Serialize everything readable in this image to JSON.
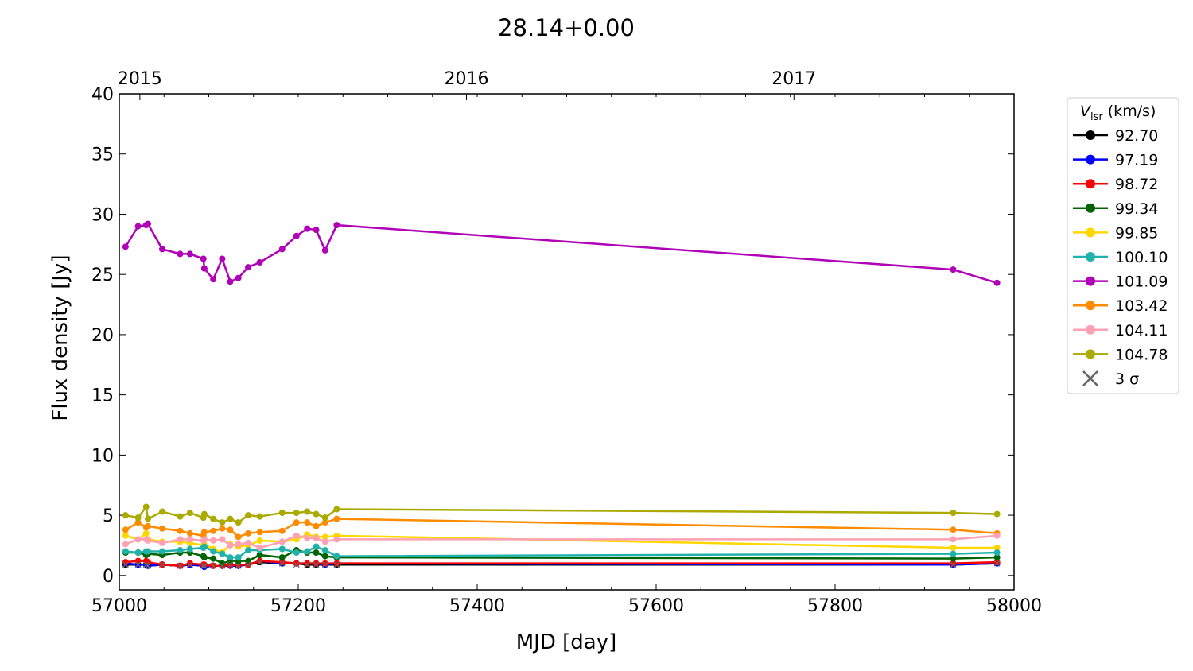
{
  "chart_data": {
    "type": "line",
    "title": "28.14+0.00",
    "xlabel": "MJD [day]",
    "ylabel": "Flux density [Jy]",
    "xlim": [
      57000,
      58000
    ],
    "ylim": [
      -1.2,
      40
    ],
    "xticks": [
      57000,
      57200,
      57400,
      57600,
      57800,
      58000
    ],
    "yticks": [
      0,
      5,
      10,
      15,
      20,
      25,
      30,
      35,
      40
    ],
    "top_axis": {
      "ticks": [
        {
          "label": "2015",
          "mjd": 57023
        },
        {
          "label": "2016",
          "mjd": 57388
        },
        {
          "label": "2017",
          "mjd": 57754
        }
      ]
    },
    "legend": {
      "title_main": "V",
      "title_sub": "lsr",
      "title_unit": " (km/s)",
      "placement": "right-outside",
      "sigma_label": "3 σ"
    },
    "x": [
      57007,
      57021,
      57030,
      57032,
      57048,
      57068,
      57079,
      57094,
      57095,
      57105,
      57115,
      57124,
      57133,
      57144,
      57157,
      57182,
      57198,
      57210,
      57220,
      57230,
      57243,
      57932,
      57981
    ],
    "series": [
      {
        "name": "92.70",
        "color": "#000000",
        "values": [
          0.9,
          0.9,
          0.9,
          0.8,
          0.9,
          0.8,
          0.9,
          0.8,
          0.8,
          0.8,
          0.8,
          0.9,
          0.8,
          0.9,
          1.1,
          1.0,
          1.0,
          0.9,
          0.9,
          0.9,
          0.9,
          0.9,
          1.0
        ]
      },
      {
        "name": "97.19",
        "color": "#0000ff",
        "values": [
          1.0,
          0.9,
          0.9,
          0.8,
          0.9,
          0.8,
          0.9,
          0.8,
          0.7,
          0.8,
          0.8,
          0.8,
          0.8,
          0.9,
          1.2,
          1.0,
          1.0,
          1.0,
          1.0,
          0.9,
          1.0,
          0.9,
          1.0
        ]
      },
      {
        "name": "98.72",
        "color": "#ff0000",
        "values": [
          1.1,
          1.2,
          1.2,
          1.1,
          0.9,
          0.8,
          1.0,
          0.9,
          0.9,
          0.8,
          0.8,
          0.9,
          0.9,
          0.9,
          1.2,
          1.1,
          1.0,
          1.0,
          1.0,
          1.0,
          1.0,
          1.0,
          1.1
        ]
      },
      {
        "name": "99.34",
        "color": "#006400",
        "values": [
          1.9,
          1.9,
          1.7,
          1.8,
          1.7,
          1.9,
          1.9,
          1.6,
          1.5,
          1.4,
          1.0,
          1.2,
          1.2,
          1.2,
          1.7,
          1.5,
          2.1,
          1.9,
          1.9,
          1.6,
          1.5,
          1.4,
          1.5
        ]
      },
      {
        "name": "99.85",
        "color": "#ffd700",
        "values": [
          3.3,
          3.0,
          3.5,
          3.0,
          2.8,
          2.8,
          2.7,
          2.5,
          2.6,
          2.2,
          1.9,
          2.6,
          2.4,
          2.5,
          2.9,
          2.8,
          3.0,
          3.4,
          3.2,
          3.2,
          3.3,
          2.3,
          2.3
        ]
      },
      {
        "name": "100.10",
        "color": "#20b2aa",
        "values": [
          2.0,
          1.9,
          2.0,
          2.0,
          2.0,
          2.1,
          2.2,
          2.3,
          2.4,
          2.0,
          1.8,
          1.5,
          1.5,
          2.1,
          2.1,
          2.2,
          1.9,
          2.0,
          2.4,
          2.1,
          1.6,
          1.8,
          1.9
        ]
      },
      {
        "name": "101.09",
        "color": "#b000b8",
        "values": [
          27.3,
          29.0,
          29.1,
          29.2,
          27.1,
          26.7,
          26.7,
          26.3,
          25.5,
          24.6,
          26.3,
          24.4,
          24.7,
          25.6,
          26.0,
          27.1,
          28.2,
          28.8,
          28.7,
          27.0,
          29.1,
          25.4,
          24.3
        ]
      },
      {
        "name": "103.42",
        "color": "#ff8c00",
        "values": [
          3.8,
          4.4,
          4.0,
          4.1,
          3.9,
          3.7,
          3.5,
          3.3,
          3.6,
          3.7,
          3.9,
          3.8,
          3.2,
          3.5,
          3.6,
          3.7,
          4.4,
          4.4,
          4.1,
          4.4,
          4.7,
          3.8,
          3.5
        ]
      },
      {
        "name": "104.11",
        "color": "#ffa0b4",
        "values": [
          2.6,
          3.0,
          3.0,
          2.9,
          2.7,
          3.0,
          3.0,
          2.9,
          3.0,
          2.9,
          3.0,
          2.5,
          2.6,
          2.7,
          2.3,
          2.8,
          3.3,
          3.1,
          3.1,
          2.8,
          3.0,
          3.0,
          3.3
        ]
      },
      {
        "name": "104.78",
        "color": "#aaaa00",
        "values": [
          5.0,
          4.8,
          5.7,
          4.7,
          5.3,
          4.9,
          5.2,
          4.8,
          5.1,
          4.7,
          4.4,
          4.7,
          4.4,
          5.0,
          4.9,
          5.2,
          5.2,
          5.3,
          5.1,
          4.8,
          5.5,
          5.2,
          5.1
        ]
      }
    ],
    "sigma3": {
      "name": "3 σ",
      "color": "#666666",
      "values": [
        0.9,
        0.9,
        0.9,
        0.8,
        0.9,
        0.8,
        0.9,
        0.8,
        0.8,
        0.8,
        0.8,
        0.9,
        0.8,
        0.9,
        1.1,
        1.0,
        0.9,
        0.9,
        0.9,
        0.9,
        0.9,
        0.9,
        1.0
      ]
    }
  }
}
